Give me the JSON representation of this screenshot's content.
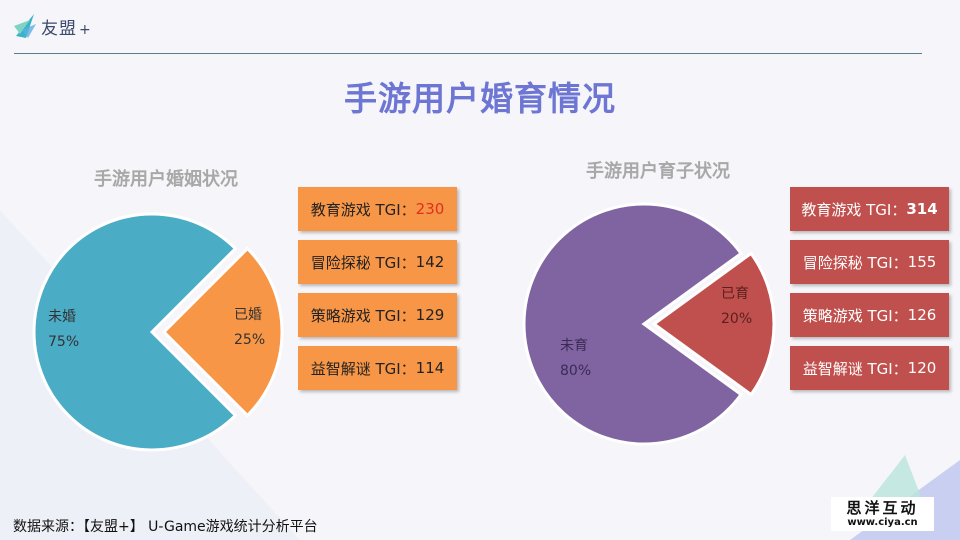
{
  "logo": {
    "text": "友盟",
    "plus": "+"
  },
  "page_title": "手游用户婚育情况",
  "colors": {
    "title": "#6e76d4",
    "married_slice": "#f79646",
    "unmarried_slice": "#4bacc6",
    "has_child_slice": "#c0504d",
    "no_child_slice": "#8064a2"
  },
  "chart_data": [
    {
      "type": "pie",
      "title": "手游用户婚姻状况",
      "slices": [
        {
          "label": "未婚",
          "value": 75,
          "display": "75%",
          "color": "#4bacc6"
        },
        {
          "label": "已婚",
          "value": 25,
          "display": "25%",
          "color": "#f79646",
          "exploded": true
        }
      ]
    },
    {
      "type": "pie",
      "title": "手游用户育子状况",
      "slices": [
        {
          "label": "未育",
          "value": 80,
          "display": "80%",
          "color": "#8064a2"
        },
        {
          "label": "已育",
          "value": 20,
          "display": "20%",
          "color": "#c0504d",
          "exploded": true
        }
      ]
    }
  ],
  "married_tgi": [
    {
      "name": "教育游戏 TGI：",
      "value": "230"
    },
    {
      "name": "冒险探秘 TGI：",
      "value": "142"
    },
    {
      "name": "策略游戏 TGI：",
      "value": "129"
    },
    {
      "name": "益智解谜 TGI：",
      "value": "114"
    }
  ],
  "parent_tgi": [
    {
      "name": "教育游戏 TGI：",
      "value": "314"
    },
    {
      "name": "冒险探秘 TGI：",
      "value": "155"
    },
    {
      "name": "策略游戏 TGI：",
      "value": "126"
    },
    {
      "name": "益智解谜 TGI：",
      "value": "120"
    }
  ],
  "footer": "数据来源：【友盟+】 U-Game游戏统计分析平台",
  "watermark": {
    "main": "思洋互动",
    "sub": "www.ciya.cn"
  }
}
